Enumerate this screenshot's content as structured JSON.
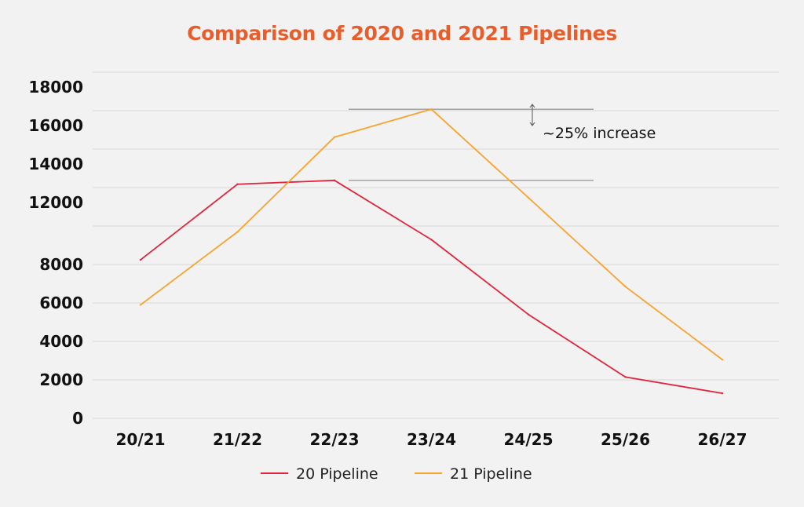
{
  "chart_data": {
    "type": "line",
    "title": "Comparison of 2020 and 2021 Pipelines",
    "xlabel": "",
    "ylabel": "",
    "categories": [
      "20/21",
      "21/22",
      "22/23",
      "23/24",
      "24/25",
      "25/26",
      "26/27"
    ],
    "y_ticks": [
      "0",
      "2000",
      "4000",
      "6000",
      "8000",
      "12000",
      "14000",
      "16000",
      "18000"
    ],
    "ylim": [
      0,
      18000
    ],
    "grid": true,
    "legend_position": "bottom",
    "series": [
      {
        "name": "20 Pipeline",
        "color": "#e0243c",
        "values": [
          8300,
          12950,
          13150,
          9600,
          5400,
          2150,
          1300
        ]
      },
      {
        "name": "21 Pipeline",
        "color": "#f7a330",
        "values": [
          5900,
          10100,
          15400,
          16850,
          12250,
          6850,
          3050
        ]
      }
    ],
    "annotation": {
      "text": "~25% increase",
      "from_value": 13150,
      "to_value": 16850,
      "line_color": "#8a8a8a",
      "arrow_color": "#555555"
    }
  },
  "colors": {
    "title": "#e85d2c",
    "grid": "#d7d8d7",
    "background": "#f1f2f1"
  }
}
